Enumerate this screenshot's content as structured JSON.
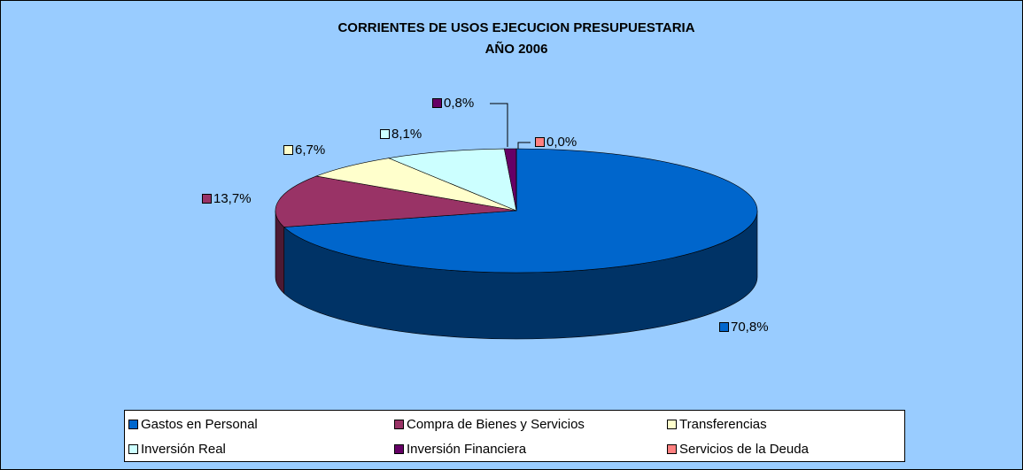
{
  "chart_data": {
    "type": "pie3d",
    "title": "CORRIENTES DE USOS EJECUCION PRESUPUESTARIA",
    "subtitle": "AÑO 2006",
    "categories": [
      "Gastos en Personal",
      "Compra de Bienes y Servicios",
      "Transferencias",
      "Inversión Real",
      "Inversión Financiera",
      "Servicios de la Deuda"
    ],
    "values": [
      70.8,
      13.7,
      6.7,
      8.1,
      0.8,
      0.0
    ],
    "value_labels": [
      "70,8%",
      "13,7%",
      "6,7%",
      "8,1%",
      "0,8%",
      "0,0%"
    ],
    "colors": [
      "#0066cc",
      "#993366",
      "#ffffcc",
      "#ccffff",
      "#660066",
      "#ff8080"
    ],
    "legend": "bottom"
  }
}
